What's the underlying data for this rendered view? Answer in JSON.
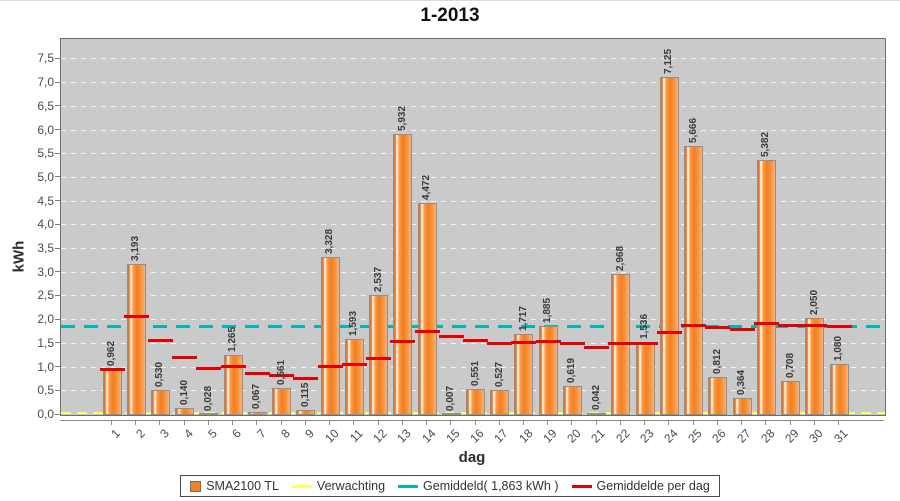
{
  "title": "1-2013",
  "y_axis": {
    "label": "kWh",
    "tick_labels": [
      "0,0",
      "0,5",
      "1,0",
      "1,5",
      "2,0",
      "2,5",
      "3,0",
      "3,5",
      "4,0",
      "4,5",
      "5,0",
      "5,5",
      "6,0",
      "6,5",
      "7,0",
      "7,5"
    ]
  },
  "x_axis": {
    "label": "dag",
    "tick_labels": [
      "1",
      "2",
      "3",
      "4",
      "5",
      "6",
      "7",
      "8",
      "9",
      "10",
      "11",
      "12",
      "13",
      "14",
      "15",
      "16",
      "17",
      "18",
      "19",
      "20",
      "21",
      "22",
      "23",
      "24",
      "25",
      "26",
      "27",
      "28",
      "29",
      "30",
      "31"
    ]
  },
  "legend": {
    "items": [
      {
        "label": "SMA2100 TL",
        "swatch": "square",
        "color": "#f5821f"
      },
      {
        "label": "Verwachting",
        "swatch": "line",
        "color": "#ffff5e"
      },
      {
        "label": "Gemiddeld( 1,863 kWh )",
        "swatch": "line",
        "color": "#00b6b6"
      },
      {
        "label": "Gemiddelde per dag",
        "swatch": "line",
        "color": "#e60000"
      }
    ]
  },
  "chart_data": {
    "type": "bar",
    "title": "1-2013",
    "xlabel": "dag",
    "ylabel": "kWh",
    "ylim": [
      0,
      7.93
    ],
    "y_tick_step": 0.5,
    "grid": "horizontal white dashed",
    "legend_position": "bottom",
    "categories": [
      "1",
      "2",
      "3",
      "4",
      "5",
      "6",
      "7",
      "8",
      "9",
      "10",
      "11",
      "12",
      "13",
      "14",
      "15",
      "16",
      "17",
      "18",
      "19",
      "20",
      "21",
      "22",
      "23",
      "24",
      "25",
      "26",
      "27",
      "28",
      "29",
      "30",
      "31"
    ],
    "series": [
      {
        "name": "SMA2100 TL",
        "type": "bar",
        "color": "#f5821f",
        "values": [
          0.962,
          3.193,
          0.53,
          0.14,
          0.028,
          1.265,
          0.067,
          0.561,
          0.115,
          3.328,
          1.593,
          2.537,
          5.932,
          4.472,
          0.007,
          0.551,
          0.527,
          1.717,
          1.885,
          0.619,
          0.042,
          2.968,
          1.536,
          7.125,
          5.666,
          0.812,
          0.364,
          5.382,
          0.708,
          2.05,
          1.08
        ]
      },
      {
        "name": "Verwachting",
        "type": "dashed-line-constant",
        "color": "#ffff5e",
        "constant_value": 0.03
      },
      {
        "name": "Gemiddeld( 1,863 kWh )",
        "type": "dashed-line-constant",
        "color": "#00b6b6",
        "constant_value": 1.863
      },
      {
        "name": "Gemiddelde per dag",
        "type": "per-category-segments",
        "color": "#e60000",
        "values": [
          0.962,
          2.078,
          1.562,
          1.206,
          0.971,
          1.02,
          0.884,
          0.843,
          0.762,
          1.019,
          1.071,
          1.193,
          1.558,
          1.766,
          1.649,
          1.58,
          1.518,
          1.529,
          1.548,
          1.501,
          1.432,
          1.502,
          1.503,
          1.738,
          1.895,
          1.853,
          1.798,
          1.926,
          1.884,
          1.889,
          1.863
        ]
      }
    ],
    "bar_value_labels": [
      "0,962",
      "3,193",
      "0,530",
      "0,140",
      "0,028",
      "1,265",
      "0,067",
      "0,561",
      "0,115",
      "3,328",
      "1,593",
      "2,537",
      "5,932",
      "4,472",
      "0,007",
      "0,551",
      "0,527",
      "1,717",
      "1,885",
      "0,619",
      "0,042",
      "2,968",
      "1,536",
      "7,125",
      "5,666",
      "0,812",
      "0,364",
      "5,382",
      "0,708",
      "2,050",
      "1,080"
    ]
  },
  "colors": {
    "plot_background": "#cacaca",
    "gridline": "#f3f3f3",
    "bar_fill": "#f5821f",
    "expectation_line": "#ffff5e",
    "average_line": "#00b6b6",
    "average_per_day": "#e60000"
  }
}
